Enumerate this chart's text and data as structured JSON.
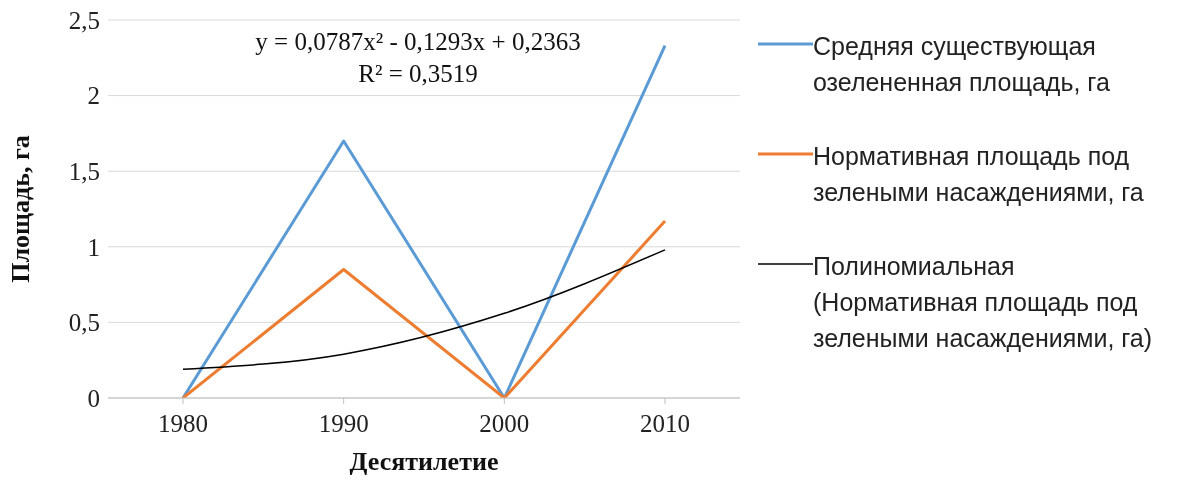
{
  "chart_data": {
    "type": "line",
    "xlabel": "Десятилетие",
    "ylabel": "Площадь, га",
    "categories": [
      "1980",
      "1990",
      "2000",
      "2010"
    ],
    "series": [
      {
        "name": "Средняя существующая озелененная площадь, га",
        "color": "#5b9bd5",
        "values": [
          0,
          1.7,
          0,
          2.33
        ]
      },
      {
        "name": "Нормативная площадь под зелеными насаждениями, га",
        "color": "#ed7d31",
        "values": [
          0,
          0.85,
          0,
          1.17
        ]
      },
      {
        "name": "Полиномиальная (Нормативная площадь под зелеными насаждениями, га)",
        "color": "#000000",
        "values": [
          0.19,
          0.29,
          0.56,
          0.98
        ]
      }
    ],
    "ylim": [
      0,
      2.5
    ],
    "yticks": [
      0,
      {
        "value": 0.5,
        "label": "0,5"
      },
      1,
      {
        "value": 1.5,
        "label": "1,5"
      },
      2,
      {
        "value": 2.5,
        "label": "2,5"
      }
    ],
    "grid": "y",
    "legend": "right",
    "marker": "none",
    "line_style": "solid",
    "annotations": [
      "y = 0,0787x² - 0,1293x + 0,2363",
      "R² = 0,3519"
    ]
  }
}
